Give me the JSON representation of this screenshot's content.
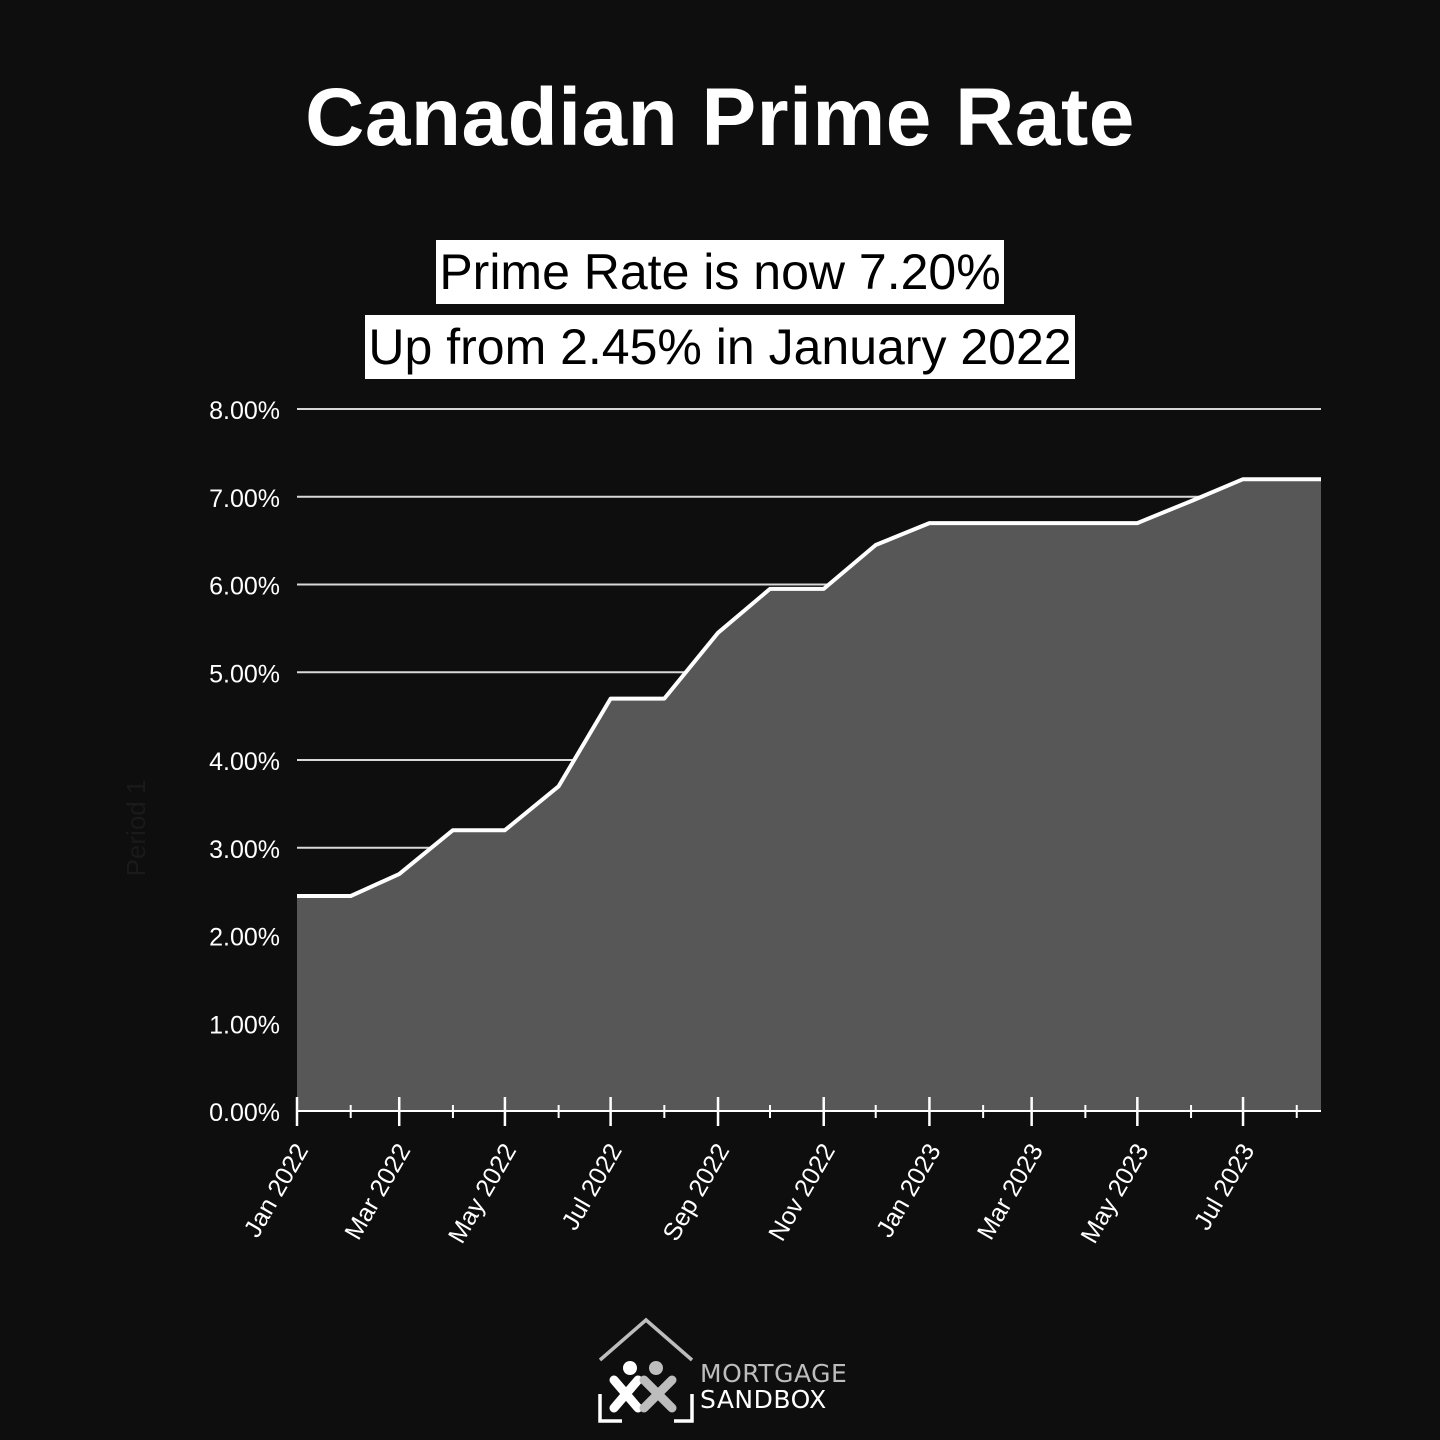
{
  "header": {
    "title": "Canadian Prime Rate",
    "highlight_line1": "Prime Rate is now 7.20%",
    "highlight_line2": "Up from 2.45% in January 2022"
  },
  "colors": {
    "background": "#0e0e0e",
    "area_fill": "#575757",
    "line": "#ffffff",
    "grid": "#d8d8d8",
    "highlight_bg": "#ffffff",
    "highlight_text": "#000000"
  },
  "chart_data": {
    "type": "area",
    "ylabel": "Period 1",
    "ylim": [
      0,
      8
    ],
    "yticks": [
      {
        "value": 0,
        "label": "0.00%"
      },
      {
        "value": 1,
        "label": "1.00%"
      },
      {
        "value": 2,
        "label": "2.00%"
      },
      {
        "value": 3,
        "label": "3.00%"
      },
      {
        "value": 4,
        "label": "4.00%"
      },
      {
        "value": 5,
        "label": "5.00%"
      },
      {
        "value": 6,
        "label": "6.00%"
      },
      {
        "value": 7,
        "label": "7.00%"
      },
      {
        "value": 8,
        "label": "8.00%"
      }
    ],
    "xlim": [
      "2022-01-01",
      "2023-08-15"
    ],
    "xticks": [
      {
        "date": "2022-01-01",
        "label": "Jan 2022"
      },
      {
        "date": "2022-03-01",
        "label": "Mar 2022"
      },
      {
        "date": "2022-05-01",
        "label": "May 2022"
      },
      {
        "date": "2022-07-01",
        "label": "Jul 2022"
      },
      {
        "date": "2022-09-01",
        "label": "Sep 2022"
      },
      {
        "date": "2022-11-01",
        "label": "Nov 2022"
      },
      {
        "date": "2023-01-01",
        "label": "Jan 2023"
      },
      {
        "date": "2023-03-01",
        "label": "Mar 2023"
      },
      {
        "date": "2023-05-01",
        "label": "May 2023"
      },
      {
        "date": "2023-07-01",
        "label": "Jul 2023"
      }
    ],
    "grid": true,
    "series": [
      {
        "points": [
          {
            "date": "2022-01-01",
            "value": 2.45
          },
          {
            "date": "2022-02-01",
            "value": 2.45
          },
          {
            "date": "2022-03-01",
            "value": 2.7
          },
          {
            "date": "2022-04-01",
            "value": 3.2
          },
          {
            "date": "2022-05-01",
            "value": 3.2
          },
          {
            "date": "2022-06-01",
            "value": 3.7
          },
          {
            "date": "2022-07-01",
            "value": 4.7
          },
          {
            "date": "2022-08-01",
            "value": 4.7
          },
          {
            "date": "2022-09-01",
            "value": 5.45
          },
          {
            "date": "2022-10-01",
            "value": 5.95
          },
          {
            "date": "2022-11-01",
            "value": 5.95
          },
          {
            "date": "2022-12-01",
            "value": 6.45
          },
          {
            "date": "2023-01-01",
            "value": 6.7
          },
          {
            "date": "2023-02-01",
            "value": 6.7
          },
          {
            "date": "2023-03-01",
            "value": 6.7
          },
          {
            "date": "2023-04-01",
            "value": 6.7
          },
          {
            "date": "2023-05-01",
            "value": 6.7
          },
          {
            "date": "2023-06-01",
            "value": 6.95
          },
          {
            "date": "2023-07-01",
            "value": 7.2
          },
          {
            "date": "2023-08-01",
            "value": 7.2
          },
          {
            "date": "2023-08-15",
            "value": 7.2
          }
        ]
      }
    ]
  },
  "logo": {
    "name_line1": "MORTGAGE",
    "name_line2": "SANDBOX",
    "icon": "house-people-logo-icon"
  }
}
